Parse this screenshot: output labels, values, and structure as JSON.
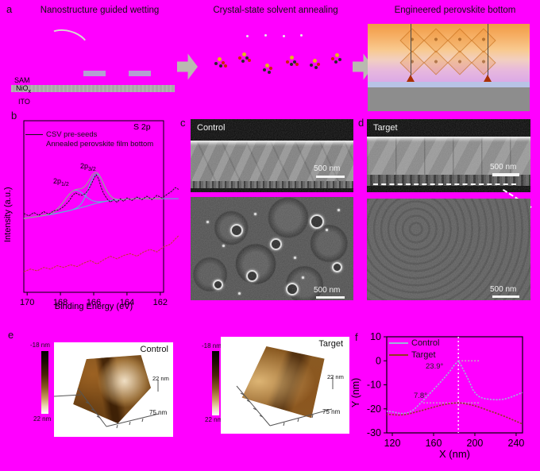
{
  "background": "#ff00ff",
  "panels": {
    "a": {
      "label": "a",
      "titles": [
        "Nanostructure guided wetting",
        "Crystal-state solvent annealing",
        "Engineered perovskite bottom"
      ],
      "layers": {
        "sam": "SAM",
        "nio_main": "NiO",
        "nio_sub": "x",
        "ito": "ITO"
      }
    },
    "b": {
      "label": "b",
      "corner": "S 2p",
      "legend": [
        "CSV pre-seeds",
        "Annealed perovskite film bottom"
      ],
      "peak1": {
        "main": "2p",
        "sub": "1/2"
      },
      "peak2": {
        "main": "2p",
        "sub": "3/2"
      },
      "xlabel": "Binding Energy (eV)",
      "ylabel": "Intensity (a.u.)"
    },
    "c": {
      "label": "c",
      "tag": "Control",
      "scale_top": "500 nm",
      "scale_bottom": "500 nm"
    },
    "d": {
      "label": "d",
      "tag": "Target",
      "scale_top": "500 nm",
      "scale_bottom": "500 nm"
    },
    "e": {
      "label": "e",
      "control": {
        "tag": "Control",
        "cbar_top": "-18 nm",
        "cbar_bottom": "22 nm",
        "z_label": "22 nm",
        "x_label": "75 nm"
      },
      "target": {
        "tag": "Target",
        "cbar_top": "-18 nm",
        "cbar_bottom": "22 nm",
        "z_label": "22 nm",
        "x_label": "75 nm"
      }
    },
    "f": {
      "label": "f",
      "xlabel": "X (nm)",
      "ylabel": "Y (nm)",
      "legend": [
        {
          "label": "Control",
          "color": "#9fb3d9"
        },
        {
          "label": "Target",
          "color": "#8f3b1f"
        }
      ],
      "angle_control": "23.9°",
      "angle_target": "7.8°"
    }
  },
  "chart_data": [
    {
      "id": "xps",
      "type": "line",
      "title": "S 2p",
      "xlabel": "Binding Energy (eV)",
      "ylabel": "Intensity (a.u.)",
      "x_range": [
        170.2,
        161.8
      ],
      "y_range": [
        0,
        100
      ],
      "x_ticks": [
        170,
        168,
        166,
        164,
        162
      ],
      "legend": [
        "CSV pre-seeds",
        "Annealed perovskite film bottom"
      ],
      "peak_annotations": [
        "2p1/2",
        "2p3/2"
      ],
      "series": [
        {
          "name": "fit-baseline",
          "kind": "baseline",
          "color": "#4fc3cf",
          "width": 1,
          "points": [
            [
              170.2,
              43
            ],
            [
              169.5,
              44
            ],
            [
              168.5,
              45.5
            ],
            [
              167.5,
              47.5
            ],
            [
              166.5,
              50
            ],
            [
              165.8,
              52
            ],
            [
              165.0,
              53.5
            ],
            [
              164.0,
              54.3
            ],
            [
              163.0,
              54.6
            ],
            [
              162.0,
              54.6
            ],
            [
              160.9,
              54.6
            ]
          ]
        },
        {
          "name": "fit-2p1/2",
          "kind": "gauss",
          "color": "#4fc3cf",
          "width": 1,
          "gauss": {
            "center": 167.15,
            "amp": 11,
            "sigma": 0.6
          }
        },
        {
          "name": "fit-2p3/2",
          "kind": "gauss",
          "color": "#4fc3cf",
          "width": 1,
          "gauss": {
            "center": 165.85,
            "amp": 17,
            "sigma": 0.45
          }
        },
        {
          "name": "envelope",
          "kind": "envelope",
          "color": "#9b9b9b",
          "width": 1.2
        },
        {
          "name": "CSV pre-seeds",
          "kind": "points",
          "color": "#1a1a1a",
          "width": 1,
          "points": [
            [
              170.2,
              46
            ],
            [
              169.9,
              44.5
            ],
            [
              169.6,
              46.5
            ],
            [
              169.3,
              44.8
            ],
            [
              169.0,
              47
            ],
            [
              168.7,
              45.5
            ],
            [
              168.4,
              47.5
            ],
            [
              168.1,
              48
            ],
            [
              167.8,
              50
            ],
            [
              167.5,
              53
            ],
            [
              167.3,
              56
            ],
            [
              167.1,
              58
            ],
            [
              166.9,
              57
            ],
            [
              166.7,
              56.5
            ],
            [
              166.5,
              57.5
            ],
            [
              166.3,
              60
            ],
            [
              166.1,
              64
            ],
            [
              165.95,
              67
            ],
            [
              165.85,
              68.5
            ],
            [
              165.7,
              66
            ],
            [
              165.55,
              61
            ],
            [
              165.4,
              57.5
            ],
            [
              165.2,
              54.5
            ],
            [
              165.0,
              52.5
            ],
            [
              164.8,
              54
            ],
            [
              164.6,
              52.5
            ],
            [
              164.4,
              54.5
            ],
            [
              164.2,
              53
            ],
            [
              164.0,
              55
            ],
            [
              163.7,
              53.5
            ],
            [
              163.4,
              55.5
            ],
            [
              163.1,
              54
            ],
            [
              162.8,
              56
            ],
            [
              162.5,
              54
            ],
            [
              162.2,
              56.5
            ],
            [
              161.9,
              55
            ],
            [
              161.6,
              57
            ],
            [
              161.3,
              59
            ],
            [
              161.1,
              61
            ],
            [
              160.9,
              60
            ]
          ]
        },
        {
          "name": "Annealed perovskite film bottom",
          "kind": "points",
          "color": "#c0392b",
          "width": 1,
          "points": [
            [
              170.2,
              12
            ],
            [
              169.8,
              13.5
            ],
            [
              169.4,
              12.5
            ],
            [
              169.0,
              14.5
            ],
            [
              168.6,
              13.5
            ],
            [
              168.2,
              15.5
            ],
            [
              167.8,
              14.5
            ],
            [
              167.4,
              16
            ],
            [
              167.0,
              15
            ],
            [
              166.6,
              17
            ],
            [
              166.2,
              18.5
            ],
            [
              165.8,
              16.5
            ],
            [
              165.4,
              19
            ],
            [
              165.0,
              21
            ],
            [
              164.6,
              19.5
            ],
            [
              164.2,
              21.5
            ],
            [
              163.8,
              22.5
            ],
            [
              163.4,
              21
            ],
            [
              163.0,
              23.5
            ],
            [
              162.6,
              25
            ],
            [
              162.2,
              23.5
            ],
            [
              161.8,
              26.5
            ],
            [
              161.4,
              28
            ],
            [
              161.1,
              31
            ],
            [
              160.9,
              33
            ]
          ]
        }
      ]
    },
    {
      "id": "profile",
      "type": "line",
      "xlabel": "X (nm)",
      "ylabel": "Y (nm)",
      "x_range": [
        114.6,
        246.2
      ],
      "y_range": [
        -30,
        10
      ],
      "x_ticks": [
        120,
        160,
        200,
        240
      ],
      "y_ticks": [
        10,
        0,
        -10,
        -20,
        -30
      ],
      "annotations": {
        "angle_control": "23.9°",
        "angle_target": "7.8°",
        "vline_x": 184,
        "hline1": {
          "y": 0,
          "x1": 184,
          "x2": 205
        },
        "hline2": {
          "y": -17.5,
          "x1": 150,
          "x2": 205
        }
      },
      "series": [
        {
          "name": "Control",
          "color": "#9fb3d9",
          "width": 1.6,
          "points": [
            [
              114,
              -21
            ],
            [
              120,
              -21.2
            ],
            [
              126,
              -21.8
            ],
            [
              131,
              -22
            ],
            [
              136,
              -21.5
            ],
            [
              141,
              -20.3
            ],
            [
              146,
              -18.2
            ],
            [
              151,
              -16
            ],
            [
              156,
              -13.8
            ],
            [
              161,
              -11.5
            ],
            [
              166,
              -9.2
            ],
            [
              171,
              -6.8
            ],
            [
              176,
              -4.2
            ],
            [
              180,
              -1.8
            ],
            [
              184,
              0
            ],
            [
              187,
              -2.2
            ],
            [
              191,
              -5.5
            ],
            [
              195,
              -9
            ],
            [
              198,
              -12
            ],
            [
              201,
              -13.8
            ],
            [
              205,
              -15.2
            ],
            [
              210,
              -15.8
            ],
            [
              216,
              -16.1
            ],
            [
              222,
              -16.2
            ],
            [
              228,
              -16
            ],
            [
              234,
              -15.3
            ],
            [
              240,
              -14.3
            ],
            [
              246,
              -13.2
            ]
          ]
        },
        {
          "name": "Target",
          "color": "#8f3b1f",
          "width": 1.6,
          "points": [
            [
              114,
              -22.3
            ],
            [
              120,
              -22.4
            ],
            [
              126,
              -22.6
            ],
            [
              132,
              -22.4
            ],
            [
              138,
              -21.9
            ],
            [
              144,
              -21.2
            ],
            [
              150,
              -20.5
            ],
            [
              156,
              -19.8
            ],
            [
              162,
              -19.1
            ],
            [
              168,
              -18.4
            ],
            [
              174,
              -17.9
            ],
            [
              180,
              -17.6
            ],
            [
              185,
              -17.5
            ],
            [
              190,
              -17.8
            ],
            [
              196,
              -18.3
            ],
            [
              202,
              -19
            ],
            [
              208,
              -19.9
            ],
            [
              214,
              -20.8
            ],
            [
              220,
              -21.7
            ],
            [
              226,
              -22.7
            ],
            [
              232,
              -23.7
            ],
            [
              238,
              -24.8
            ],
            [
              244,
              -25.9
            ],
            [
              248,
              -26.6
            ]
          ]
        }
      ]
    }
  ]
}
